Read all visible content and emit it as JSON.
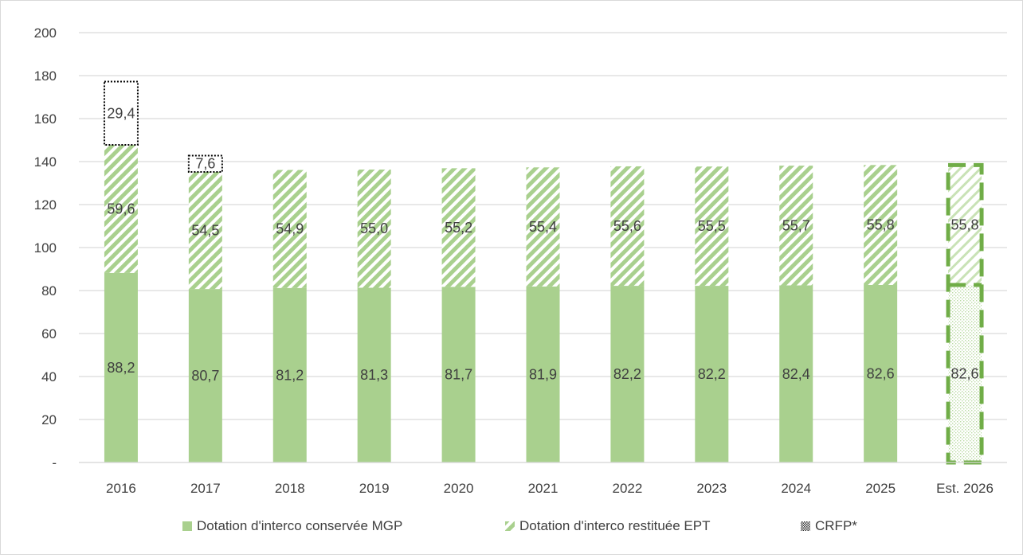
{
  "chart_data": {
    "type": "bar",
    "stacked": true,
    "title": "",
    "xlabel": "",
    "ylabel": "",
    "ylim": [
      0,
      200
    ],
    "yticks": [
      "-",
      "20",
      "40",
      "60",
      "80",
      "100",
      "120",
      "140",
      "160",
      "180",
      "200"
    ],
    "grid": true,
    "legend_position": "bottom",
    "categories": [
      "2016",
      "2017",
      "2018",
      "2019",
      "2020",
      "2021",
      "2022",
      "2023",
      "2024",
      "2025",
      "Est. 2026"
    ],
    "series": [
      {
        "name": "Dotation d'interco conservée MGP",
        "pattern": "solid",
        "color": "#a9d08e",
        "values": [
          88.2,
          80.7,
          81.2,
          81.3,
          81.7,
          81.9,
          82.2,
          82.2,
          82.4,
          82.6,
          82.6
        ],
        "labels": [
          "88,2",
          "80,7",
          "81,2",
          "81,3",
          "81,7",
          "81,9",
          "82,2",
          "82,2",
          "82,4",
          "82,6",
          "82,6"
        ]
      },
      {
        "name": "Dotation d'interco restituée EPT",
        "pattern": "diagonal-stripes",
        "color": "#a9d08e",
        "values": [
          59.6,
          54.5,
          54.9,
          55.0,
          55.2,
          55.4,
          55.6,
          55.5,
          55.7,
          55.8,
          55.8
        ],
        "labels": [
          "59,6",
          "54,5",
          "54,9",
          "55,0",
          "55,2",
          "55,4",
          "55,6",
          "55,5",
          "55,7",
          "55,8",
          "55,8"
        ]
      },
      {
        "name": "CRFP*",
        "pattern": "dotted-grid",
        "color": "#000000",
        "values": [
          29.4,
          7.6,
          0,
          0,
          0,
          0,
          0,
          0,
          0,
          0,
          0
        ],
        "labels": [
          "29,4",
          "7,6",
          "",
          "",
          "",
          "",
          "",
          "",
          "",
          "",
          ""
        ]
      }
    ],
    "estimate_category_style": "dashed-green-outline",
    "estimate_border_color": "#70ad47"
  }
}
